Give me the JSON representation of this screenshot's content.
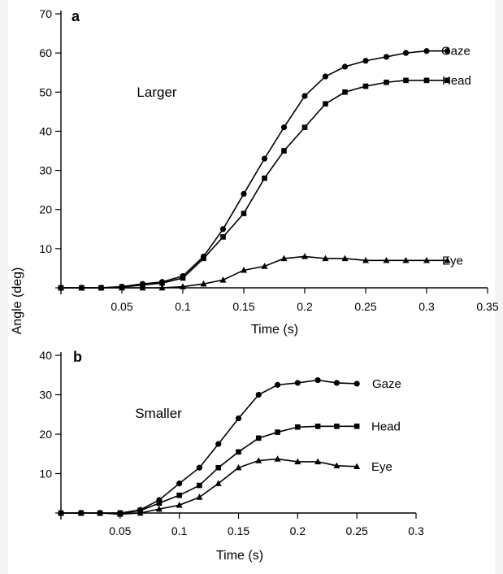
{
  "chart_data": [
    {
      "type": "line",
      "panel_label": "a",
      "annotation": "Larger",
      "xlabel": "Time (s)",
      "ylabel": "Angle (deg)",
      "xlim": [
        0,
        0.35
      ],
      "ylim": [
        0,
        70
      ],
      "x_ticks": [
        "0.05",
        "0.1",
        "0.15",
        "0.2",
        "0.25",
        "0.3",
        "0.35"
      ],
      "y_ticks": [
        "10",
        "20",
        "30",
        "40",
        "50",
        "60",
        "70"
      ],
      "grid": false,
      "x": [
        0,
        0.017,
        0.033,
        0.05,
        0.067,
        0.083,
        0.1,
        0.117,
        0.133,
        0.15,
        0.167,
        0.183,
        0.2,
        0.217,
        0.233,
        0.25,
        0.267,
        0.283,
        0.3,
        0.317
      ],
      "series": [
        {
          "name": "Gaze",
          "marker": "circle",
          "values": [
            0,
            0,
            0,
            0.3,
            1,
            1.5,
            3,
            8,
            15,
            24,
            33,
            41,
            49,
            54,
            56.5,
            58,
            59,
            60,
            60.5,
            60.5
          ]
        },
        {
          "name": "Head",
          "marker": "square",
          "values": [
            0,
            0,
            0,
            0.2,
            0.7,
            1.2,
            2.5,
            7.5,
            13,
            19,
            28,
            35,
            41,
            47,
            50,
            51.5,
            52.5,
            53,
            53,
            53
          ]
        },
        {
          "name": "Eye",
          "marker": "triangle",
          "values": [
            0,
            0,
            0,
            0,
            0,
            0,
            0.3,
            1,
            2,
            4.5,
            5.5,
            7.5,
            8,
            7.5,
            7.5,
            7,
            7,
            7,
            7,
            7
          ]
        }
      ]
    },
    {
      "type": "line",
      "panel_label": "b",
      "annotation": "Smaller",
      "xlabel": "Time (s)",
      "ylabel": "Angle (deg)",
      "xlim": [
        0,
        0.3
      ],
      "ylim": [
        0,
        40
      ],
      "x_ticks": [
        "0.05",
        "0.1",
        "0.15",
        "0.2",
        "0.25",
        "0.3"
      ],
      "y_ticks": [
        "10",
        "20",
        "30",
        "40"
      ],
      "grid": false,
      "x": [
        0,
        0.017,
        0.033,
        0.05,
        0.067,
        0.083,
        0.1,
        0.117,
        0.133,
        0.15,
        0.167,
        0.183,
        0.2,
        0.217,
        0.233,
        0.25
      ],
      "series": [
        {
          "name": "Gaze",
          "marker": "circle",
          "values": [
            0,
            0,
            0,
            0,
            0.8,
            3.3,
            7.5,
            11.5,
            17.5,
            24,
            30,
            32.5,
            33,
            33.7,
            33,
            32.8
          ]
        },
        {
          "name": "Head",
          "marker": "square",
          "values": [
            0,
            0,
            0,
            0,
            0.6,
            2.5,
            4.5,
            7,
            11.5,
            15.5,
            19,
            20.5,
            21.8,
            22,
            22,
            22
          ]
        },
        {
          "name": "Eye",
          "marker": "triangle",
          "values": [
            0,
            0,
            0,
            -0.3,
            0,
            1,
            2,
            4,
            7.5,
            11.5,
            13.3,
            13.7,
            13,
            13,
            12,
            11.8
          ]
        }
      ]
    }
  ],
  "shared_ylabel": "Angle (deg)"
}
